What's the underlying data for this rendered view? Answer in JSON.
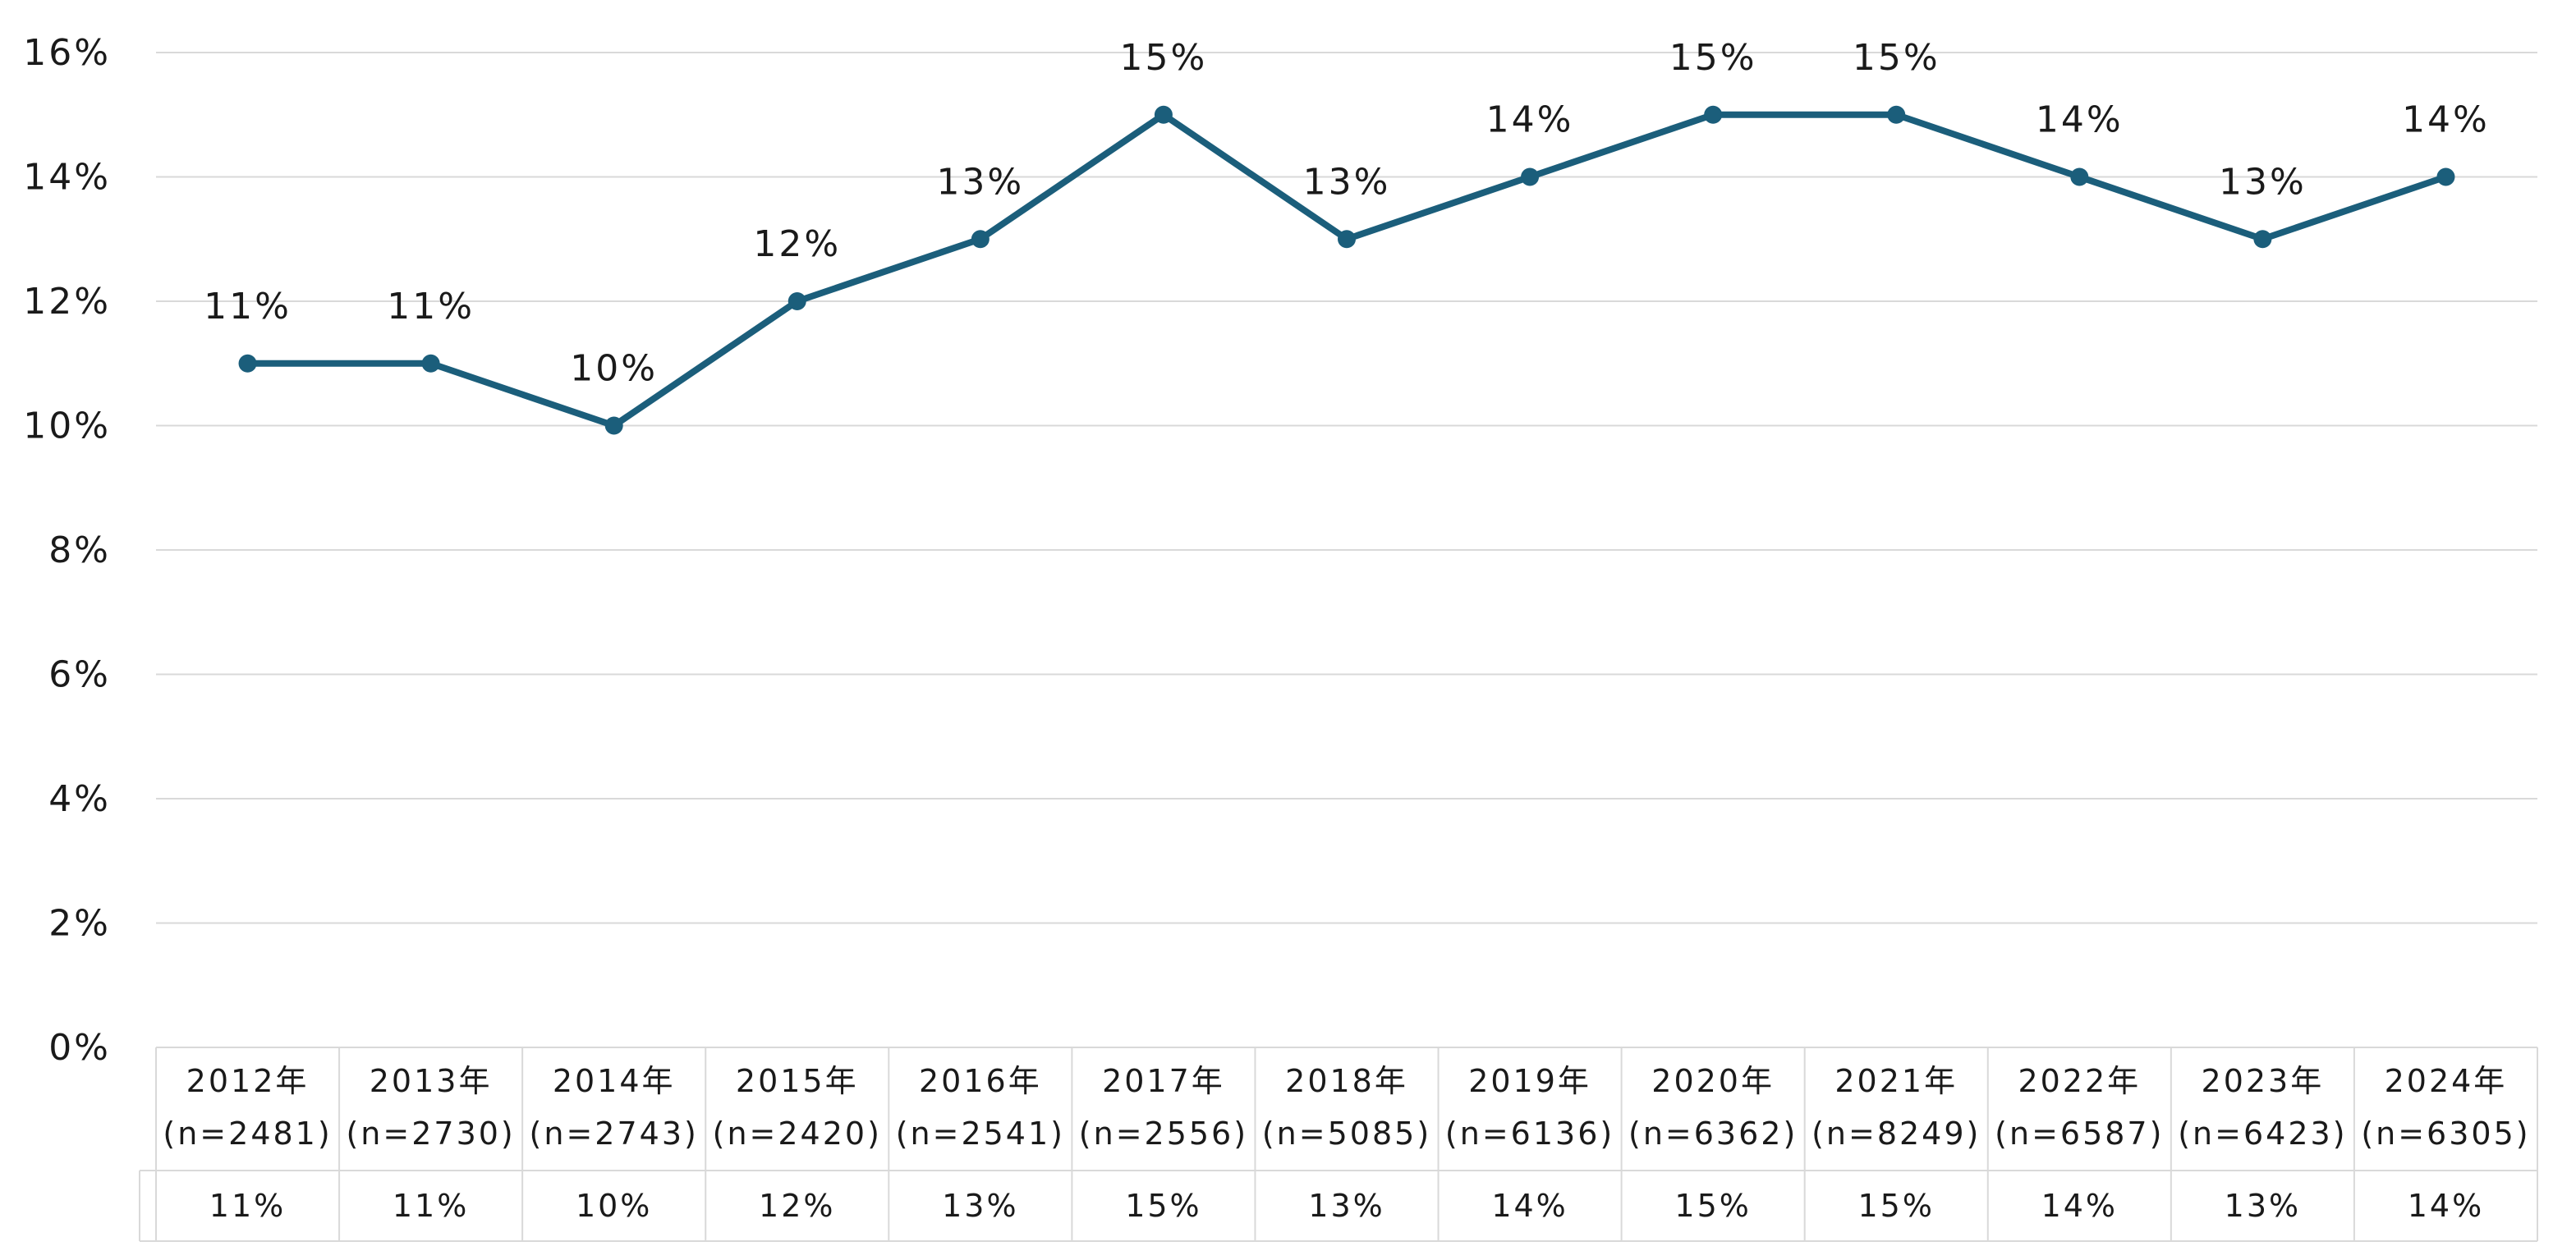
{
  "chart_data": {
    "type": "line",
    "title": "",
    "xlabel": "",
    "ylabel": "",
    "ylim": [
      0,
      16
    ],
    "y_ticks": [
      "0%",
      "2%",
      "4%",
      "6%",
      "8%",
      "10%",
      "12%",
      "14%",
      "16%"
    ],
    "y_tick_values": [
      0,
      2,
      4,
      6,
      8,
      10,
      12,
      14,
      16
    ],
    "grid": true,
    "legend": "none",
    "categories": [
      {
        "year": "2012年",
        "n": "(n=2481)"
      },
      {
        "year": "2013年",
        "n": "(n=2730)"
      },
      {
        "year": "2014年",
        "n": "(n=2743)"
      },
      {
        "year": "2015年",
        "n": "(n=2420)"
      },
      {
        "year": "2016年",
        "n": "(n=2541)"
      },
      {
        "year": "2017年",
        "n": "(n=2556)"
      },
      {
        "year": "2018年",
        "n": "(n=5085)"
      },
      {
        "year": "2019年",
        "n": "(n=6136)"
      },
      {
        "year": "2020年",
        "n": "(n=6362)"
      },
      {
        "year": "2021年",
        "n": "(n=8249)"
      },
      {
        "year": "2022年",
        "n": "(n=6587)"
      },
      {
        "year": "2023年",
        "n": "(n=6423)"
      },
      {
        "year": "2024年",
        "n": "(n=6305)"
      }
    ],
    "series": [
      {
        "values": [
          11,
          11,
          10,
          12,
          13,
          15,
          13,
          14,
          15,
          15,
          14,
          13,
          14
        ],
        "labels": [
          "11%",
          "11%",
          "10%",
          "12%",
          "13%",
          "15%",
          "13%",
          "14%",
          "15%",
          "15%",
          "14%",
          "13%",
          "14%"
        ],
        "color": "#1b5e7b"
      }
    ],
    "data_table": true
  },
  "colors": {
    "line": "#1b5e7b",
    "grid": "#d9d9d9",
    "table_border": "#d9d9d9"
  }
}
